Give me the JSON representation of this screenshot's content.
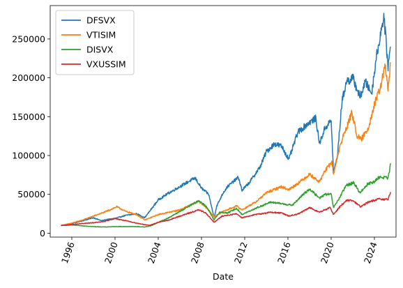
{
  "chart_data": {
    "type": "line",
    "xlabel": "Date",
    "ylabel": "",
    "title": "",
    "grid": false,
    "legend_position": "top-left",
    "xlim": [
      "1994-01-01",
      "2026-01-01"
    ],
    "ylim": [
      -5000,
      293000
    ],
    "x_ticks": [
      {
        "date": "1996-01-01",
        "label": "1996"
      },
      {
        "date": "2000-01-01",
        "label": "2000"
      },
      {
        "date": "2004-01-01",
        "label": "2004"
      },
      {
        "date": "2008-01-01",
        "label": "2008"
      },
      {
        "date": "2012-01-01",
        "label": "2012"
      },
      {
        "date": "2016-01-01",
        "label": "2016"
      },
      {
        "date": "2020-01-01",
        "label": "2020"
      },
      {
        "date": "2024-01-01",
        "label": "2024"
      }
    ],
    "y_ticks": [
      {
        "value": 0,
        "label": "0"
      },
      {
        "value": 50000,
        "label": "50000"
      },
      {
        "value": 100000,
        "label": "100000"
      },
      {
        "value": 150000,
        "label": "150000"
      },
      {
        "value": 200000,
        "label": "200000"
      },
      {
        "value": 250000,
        "label": "250000"
      }
    ],
    "series": [
      {
        "name": "DFSVX",
        "color": "#1f77b4",
        "points": [
          [
            "1995-01-01",
            10000
          ],
          [
            "1996-01-01",
            12500
          ],
          [
            "1997-01-01",
            16000
          ],
          [
            "1998-01-01",
            20000
          ],
          [
            "1998-10-01",
            16000
          ],
          [
            "1999-06-01",
            18000
          ],
          [
            "2000-01-01",
            19000
          ],
          [
            "2001-01-01",
            23000
          ],
          [
            "2002-01-01",
            25000
          ],
          [
            "2002-10-01",
            20000
          ],
          [
            "2003-06-01",
            32000
          ],
          [
            "2004-01-01",
            43000
          ],
          [
            "2005-01-01",
            52000
          ],
          [
            "2006-01-01",
            60000
          ],
          [
            "2007-01-01",
            68000
          ],
          [
            "2007-06-01",
            71000
          ],
          [
            "2008-01-01",
            58000
          ],
          [
            "2008-09-01",
            50000
          ],
          [
            "2009-03-01",
            20000
          ],
          [
            "2009-06-01",
            35000
          ],
          [
            "2010-01-01",
            52000
          ],
          [
            "2010-06-01",
            60000
          ],
          [
            "2011-06-01",
            72000
          ],
          [
            "2011-10-01",
            55000
          ],
          [
            "2012-06-01",
            65000
          ],
          [
            "2013-06-01",
            85000
          ],
          [
            "2014-01-01",
            105000
          ],
          [
            "2014-10-01",
            115000
          ],
          [
            "2015-06-01",
            112000
          ],
          [
            "2016-02-01",
            95000
          ],
          [
            "2016-12-01",
            130000
          ],
          [
            "2017-12-01",
            142000
          ],
          [
            "2018-08-01",
            148000
          ],
          [
            "2018-12-01",
            115000
          ],
          [
            "2019-06-01",
            135000
          ],
          [
            "2020-01-01",
            145000
          ],
          [
            "2020-03-20",
            78000
          ],
          [
            "2020-08-01",
            100000
          ],
          [
            "2021-01-01",
            170000
          ],
          [
            "2021-06-01",
            195000
          ],
          [
            "2022-01-01",
            200000
          ],
          [
            "2022-09-01",
            175000
          ],
          [
            "2023-03-01",
            195000
          ],
          [
            "2023-10-01",
            180000
          ],
          [
            "2024-03-01",
            225000
          ],
          [
            "2024-11-15",
            280000
          ],
          [
            "2025-04-08",
            215000
          ],
          [
            "2025-07-01",
            240000
          ]
        ]
      },
      {
        "name": "VTISIM",
        "color": "#ff7f0e",
        "points": [
          [
            "1995-01-01",
            10000
          ],
          [
            "1996-01-01",
            13000
          ],
          [
            "1997-01-01",
            17000
          ],
          [
            "1998-01-01",
            22000
          ],
          [
            "1999-01-01",
            27000
          ],
          [
            "2000-03-01",
            34000
          ],
          [
            "2001-01-01",
            28000
          ],
          [
            "2002-01-01",
            24000
          ],
          [
            "2002-10-01",
            17000
          ],
          [
            "2004-01-01",
            24000
          ],
          [
            "2006-01-01",
            30000
          ],
          [
            "2007-10-01",
            41000
          ],
          [
            "2008-09-01",
            30000
          ],
          [
            "2009-03-01",
            21000
          ],
          [
            "2010-01-01",
            28000
          ],
          [
            "2011-04-01",
            35000
          ],
          [
            "2011-10-01",
            30000
          ],
          [
            "2013-01-01",
            40000
          ],
          [
            "2014-01-01",
            52000
          ],
          [
            "2015-06-01",
            60000
          ],
          [
            "2016-02-01",
            56000
          ],
          [
            "2017-01-01",
            65000
          ],
          [
            "2018-01-01",
            76000
          ],
          [
            "2018-12-01",
            66000
          ],
          [
            "2019-06-01",
            80000
          ],
          [
            "2020-02-01",
            92000
          ],
          [
            "2020-03-20",
            75000
          ],
          [
            "2020-08-01",
            100000
          ],
          [
            "2021-01-01",
            120000
          ],
          [
            "2021-12-01",
            155000
          ],
          [
            "2022-06-01",
            125000
          ],
          [
            "2022-10-01",
            120000
          ],
          [
            "2023-06-01",
            135000
          ],
          [
            "2024-01-01",
            165000
          ],
          [
            "2024-07-01",
            185000
          ],
          [
            "2025-01-01",
            215000
          ],
          [
            "2025-04-08",
            185000
          ],
          [
            "2025-07-01",
            220000
          ]
        ]
      },
      {
        "name": "DISVX",
        "color": "#2ca02c",
        "points": [
          [
            "1995-01-01",
            10000
          ],
          [
            "1996-01-01",
            10500
          ],
          [
            "1997-01-01",
            9500
          ],
          [
            "1998-01-01",
            8500
          ],
          [
            "1999-01-01",
            8000
          ],
          [
            "2000-01-01",
            8500
          ],
          [
            "2001-01-01",
            8500
          ],
          [
            "2002-01-01",
            8500
          ],
          [
            "2002-10-01",
            8000
          ],
          [
            "2003-06-01",
            10000
          ],
          [
            "2004-01-01",
            14000
          ],
          [
            "2005-01-01",
            20000
          ],
          [
            "2006-01-01",
            28000
          ],
          [
            "2007-01-01",
            36000
          ],
          [
            "2007-10-01",
            42000
          ],
          [
            "2008-06-01",
            35000
          ],
          [
            "2009-03-01",
            17000
          ],
          [
            "2009-09-01",
            27000
          ],
          [
            "2010-06-01",
            26000
          ],
          [
            "2011-04-01",
            32000
          ],
          [
            "2011-10-01",
            24000
          ],
          [
            "2013-01-01",
            32000
          ],
          [
            "2014-06-01",
            40000
          ],
          [
            "2015-06-01",
            38000
          ],
          [
            "2016-06-01",
            36000
          ],
          [
            "2017-06-01",
            50000
          ],
          [
            "2018-01-01",
            57000
          ],
          [
            "2018-12-01",
            45000
          ],
          [
            "2019-06-01",
            50000
          ],
          [
            "2020-01-01",
            50000
          ],
          [
            "2020-03-20",
            33000
          ],
          [
            "2020-10-01",
            45000
          ],
          [
            "2021-06-01",
            62000
          ],
          [
            "2022-02-01",
            65000
          ],
          [
            "2022-09-01",
            52000
          ],
          [
            "2023-06-01",
            64000
          ],
          [
            "2024-01-01",
            66000
          ],
          [
            "2024-06-01",
            72000
          ],
          [
            "2025-01-01",
            72000
          ],
          [
            "2025-04-08",
            70000
          ],
          [
            "2025-07-01",
            90000
          ]
        ]
      },
      {
        "name": "VXUSSIM",
        "color": "#d62728",
        "points": [
          [
            "1995-01-01",
            10000
          ],
          [
            "1996-01-01",
            11000
          ],
          [
            "1997-01-01",
            12500
          ],
          [
            "1998-01-01",
            13500
          ],
          [
            "1999-01-01",
            15000
          ],
          [
            "2000-01-01",
            19000
          ],
          [
            "2001-01-01",
            16000
          ],
          [
            "2002-01-01",
            13000
          ],
          [
            "2003-03-01",
            10000
          ],
          [
            "2004-01-01",
            14000
          ],
          [
            "2005-01-01",
            17000
          ],
          [
            "2006-01-01",
            22000
          ],
          [
            "2007-10-01",
            30000
          ],
          [
            "2008-06-01",
            26000
          ],
          [
            "2009-03-01",
            14000
          ],
          [
            "2009-12-01",
            22000
          ],
          [
            "2011-04-01",
            25000
          ],
          [
            "2011-10-01",
            20000
          ],
          [
            "2013-01-01",
            24000
          ],
          [
            "2014-06-01",
            27000
          ],
          [
            "2015-06-01",
            26000
          ],
          [
            "2016-02-01",
            22000
          ],
          [
            "2017-01-01",
            25000
          ],
          [
            "2018-01-01",
            33000
          ],
          [
            "2018-12-01",
            27000
          ],
          [
            "2019-12-01",
            33000
          ],
          [
            "2020-03-20",
            24000
          ],
          [
            "2020-12-01",
            36000
          ],
          [
            "2021-06-01",
            42000
          ],
          [
            "2022-01-01",
            42000
          ],
          [
            "2022-10-01",
            34000
          ],
          [
            "2023-06-01",
            40000
          ],
          [
            "2024-06-01",
            44000
          ],
          [
            "2025-01-01",
            43000
          ],
          [
            "2025-04-08",
            44000
          ],
          [
            "2025-07-01",
            53000
          ]
        ]
      }
    ]
  }
}
